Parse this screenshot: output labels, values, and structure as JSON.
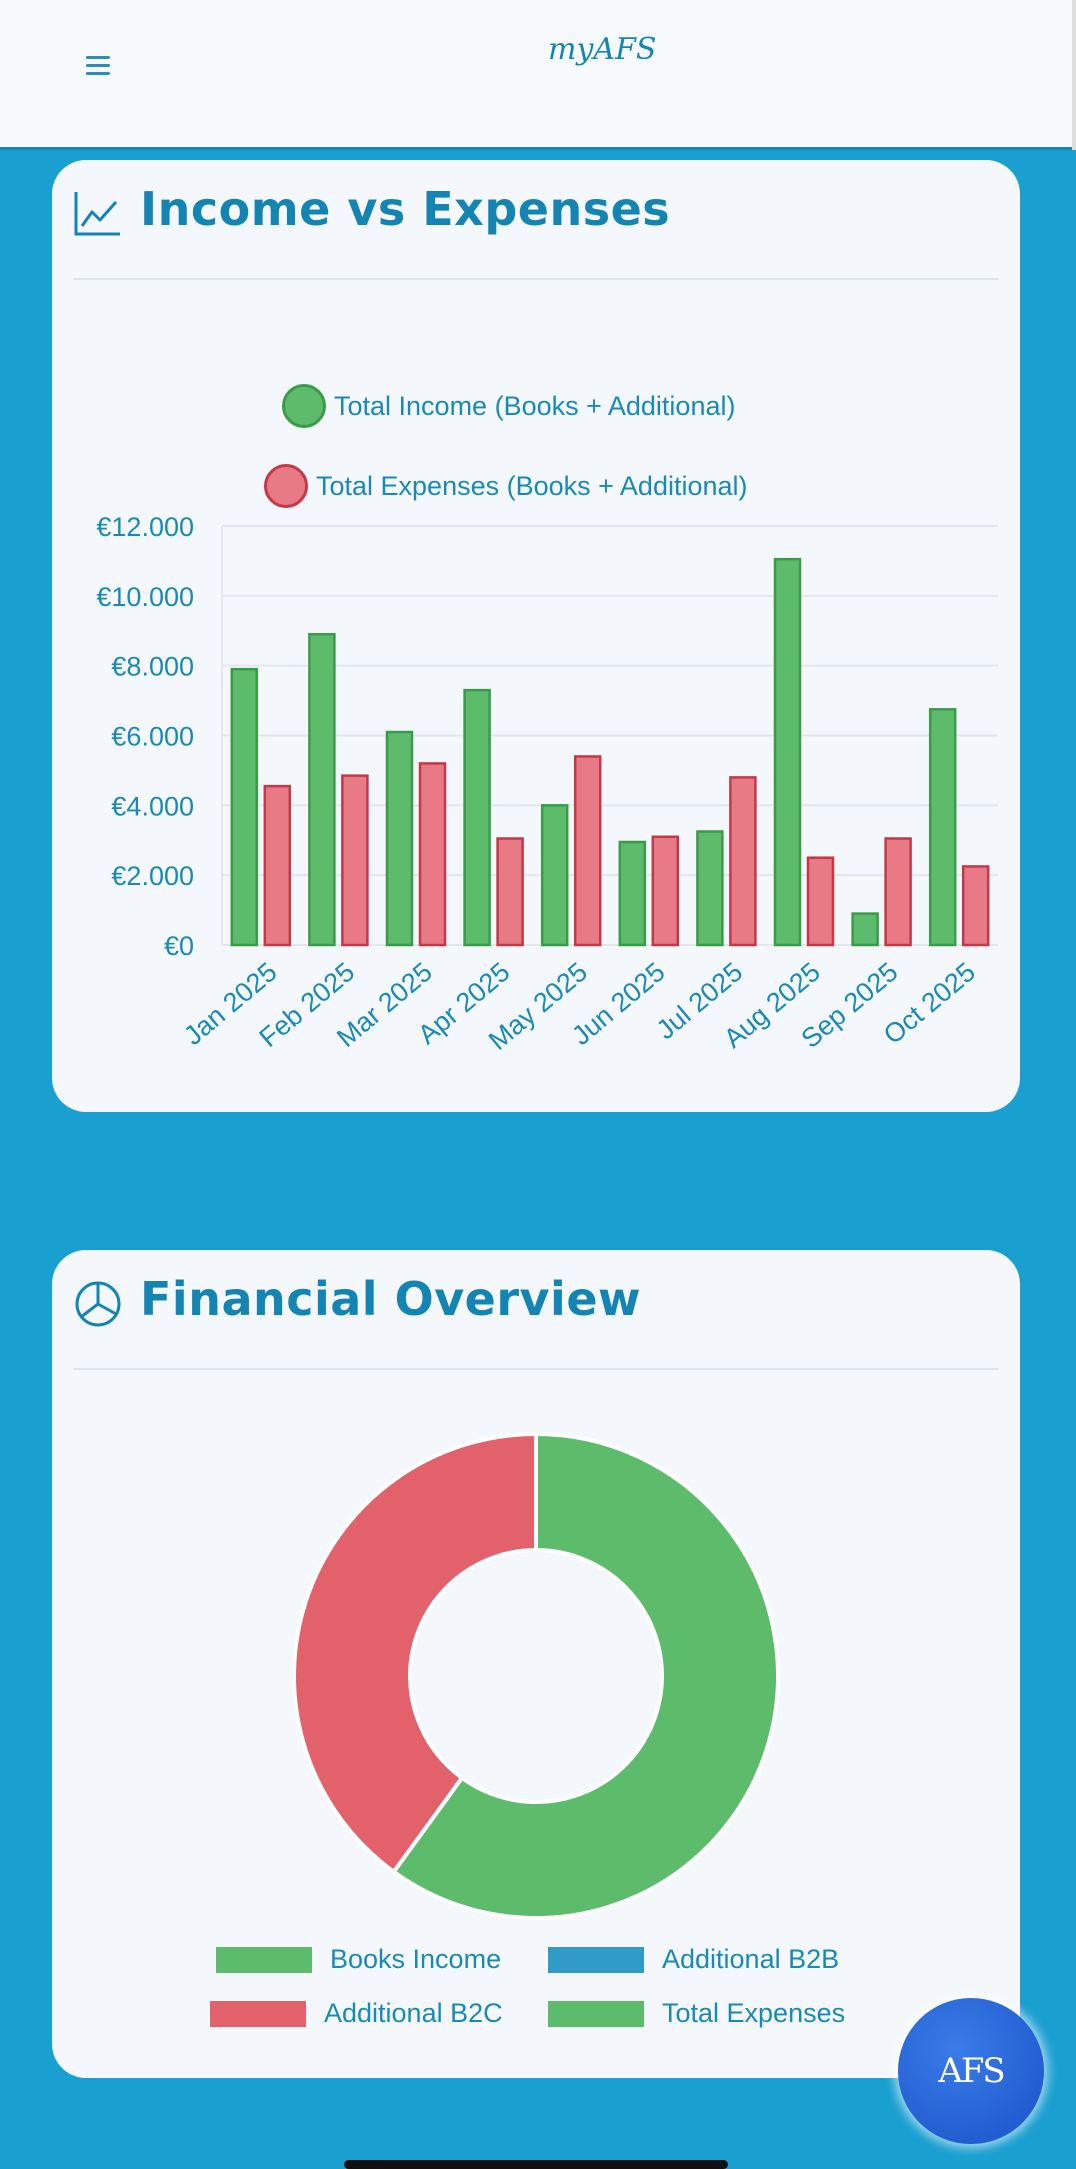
{
  "header": {
    "menu_icon": "hamburger-icon",
    "logo_prefix": "my",
    "logo_caps": "AFS"
  },
  "income_card": {
    "title": "Income vs Expenses",
    "icon": "line-chart-icon"
  },
  "overview_card": {
    "title": "Financial Overview",
    "icon": "pie-chart-icon"
  },
  "fab": {
    "label": "AFS"
  },
  "colors": {
    "income": "#5cbc6c",
    "income_border": "#3a9c48",
    "expenses": "#e87a85",
    "expenses_border": "#c43848",
    "b2b": "#2f9bc6",
    "b2c": "#e3616b",
    "accent": "#1484b3"
  },
  "chart_data": [
    {
      "type": "bar",
      "categories": [
        "Jan 2025",
        "Feb 2025",
        "Mar 2025",
        "Apr 2025",
        "May 2025",
        "Jun 2025",
        "Jul 2025",
        "Aug 2025",
        "Sep 2025",
        "Oct 2025"
      ],
      "series": [
        {
          "name": "Total Income (Books + Additional)",
          "values": [
            7900,
            8900,
            6100,
            7300,
            4000,
            2950,
            3250,
            11050,
            900,
            6750
          ]
        },
        {
          "name": "Total Expenses (Books + Additional)",
          "values": [
            4550,
            4850,
            5200,
            3050,
            5400,
            3100,
            4800,
            2500,
            3050,
            2250
          ]
        }
      ],
      "y_ticks": [
        "€0",
        "€2.000",
        "€4.000",
        "€6.000",
        "€8.000",
        "€10.000",
        "€12.000"
      ],
      "ylim": [
        0,
        12000
      ],
      "grid": true,
      "legend_position": "top"
    },
    {
      "type": "pie",
      "labels": [
        "Books Income",
        "Additional B2B",
        "Additional B2C",
        "Total Expenses"
      ],
      "values": [
        60,
        0,
        40,
        0
      ],
      "colors": [
        "#5cbc6c",
        "#2f9bc6",
        "#e3616b",
        "#5cbc6c"
      ],
      "donut": true,
      "legend_position": "bottom"
    }
  ]
}
